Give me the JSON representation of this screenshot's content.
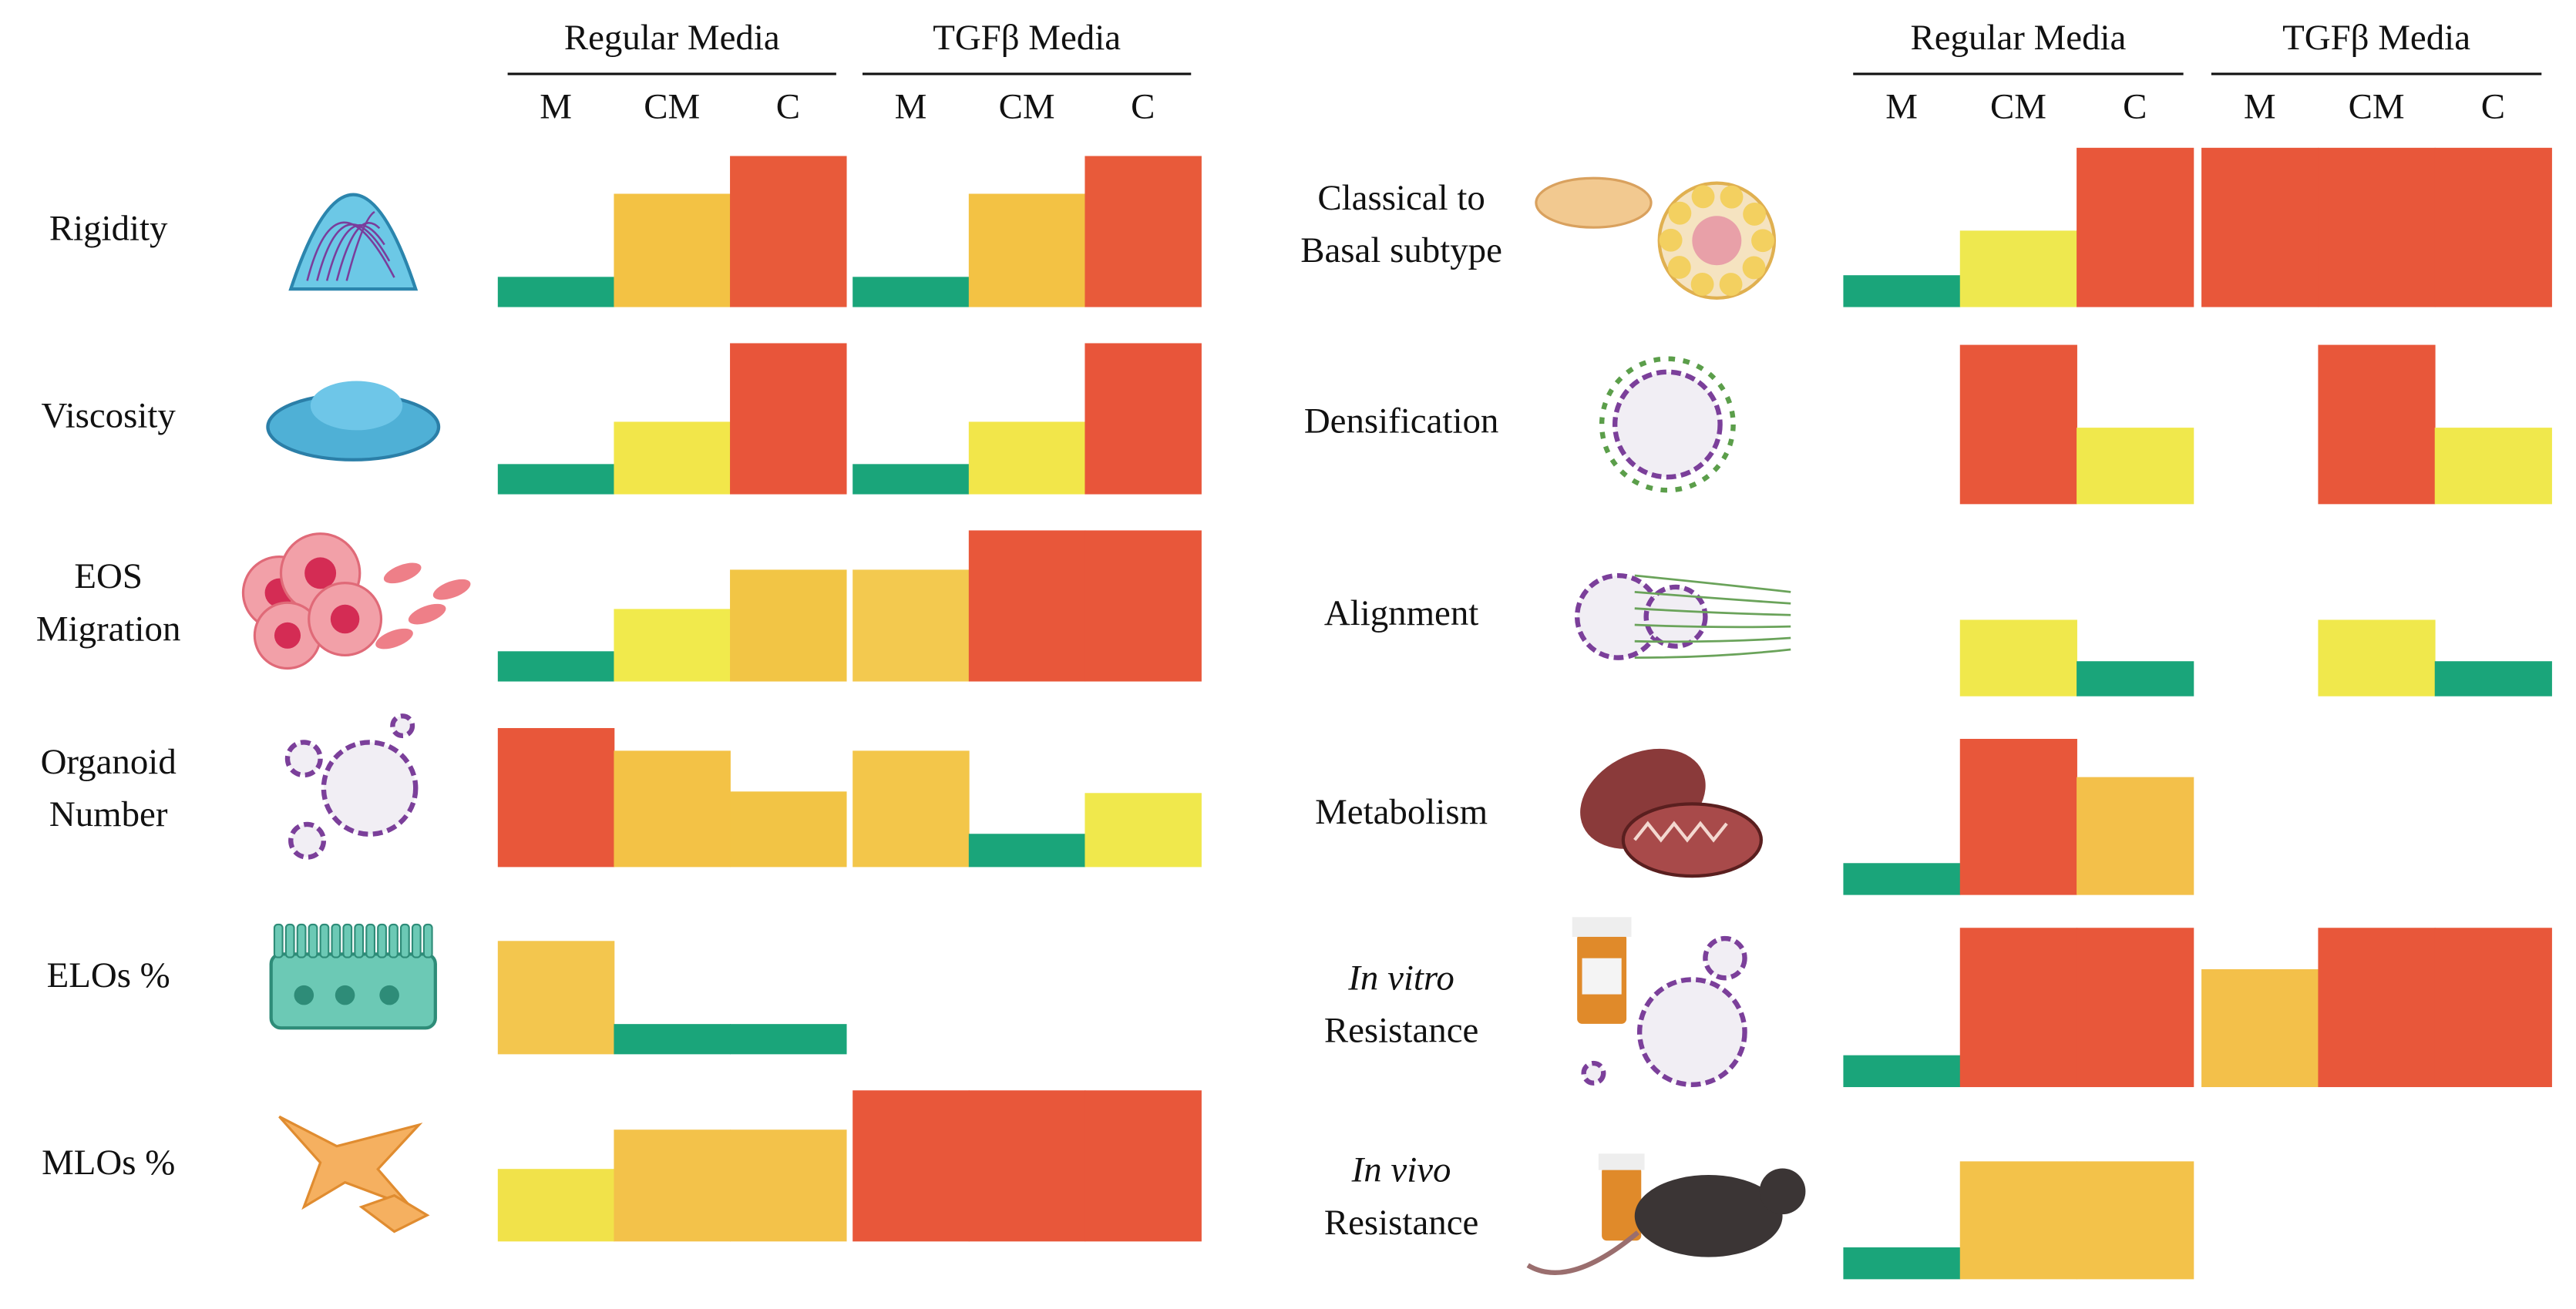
{
  "chart_data": [
    {
      "type": "step",
      "groups": [
        "Regular Media",
        "TGFβ Media"
      ],
      "categories": [
        "M",
        "CM",
        "C"
      ],
      "ylim": [
        0,
        1
      ],
      "rows": [
        {
          "label": [
            "Rigidity"
          ],
          "values": [
            [
              0.2,
              0.75,
              1.0
            ],
            [
              0.2,
              0.75,
              1.0
            ]
          ],
          "colors": [
            [
              "#1aa57a",
              "#f3c244",
              "#e85a3a"
            ],
            [
              "#1aa57a",
              "#f3c244",
              "#e85a3a"
            ]
          ]
        },
        {
          "label": [
            "Viscosity"
          ],
          "values": [
            [
              0.2,
              0.48,
              1.0
            ],
            [
              0.2,
              0.48,
              1.0
            ]
          ],
          "colors": [
            [
              "#1aa57a",
              "#f2e64a",
              "#e8553a"
            ],
            [
              "#1aa57a",
              "#f2e64a",
              "#e8553a"
            ]
          ]
        },
        {
          "label": [
            "EOS",
            "Migration"
          ],
          "values": [
            [
              0.2,
              0.48,
              0.74
            ],
            [
              0.74,
              1.0,
              1.0
            ]
          ],
          "colors": [
            [
              "#1aa57a",
              "#f1ea4c",
              "#f2c545"
            ],
            [
              "#f3c94f",
              "#e8573a",
              "#e8573a"
            ]
          ]
        },
        {
          "label": [
            "Organoid",
            "Number"
          ],
          "values": [
            [
              0.92,
              0.77,
              0.5
            ],
            [
              0.77,
              0.22,
              0.49
            ]
          ],
          "colors": [
            [
              "#e8573a",
              "#f3c246",
              "#f2c445"
            ],
            [
              "#f3c64a",
              "#1aa57a",
              "#f0e84c"
            ]
          ]
        },
        {
          "label": [
            "ELOs %"
          ],
          "values": [
            [
              0.75,
              0.2,
              0.2
            ],
            null
          ],
          "colors": [
            [
              "#f3c64e",
              "#1aa57a",
              "#1aa57a"
            ],
            null
          ]
        },
        {
          "label": [
            "MLOs %"
          ],
          "values": [
            [
              0.48,
              0.74,
              0.74
            ],
            [
              1.0,
              1.0,
              1.0
            ]
          ],
          "colors": [
            [
              "#f1e24a",
              "#f3c24a",
              "#f3c24a"
            ],
            [
              "#e8573a",
              "#e8573a",
              "#e8573a"
            ]
          ]
        }
      ]
    },
    {
      "type": "step",
      "groups": [
        "Regular Media",
        "TGFβ Media"
      ],
      "categories": [
        "M",
        "CM",
        "C"
      ],
      "ylim": [
        0,
        1
      ],
      "rows": [
        {
          "label": [
            "Classical to",
            "Basal subtype"
          ],
          "values": [
            [
              0.2,
              0.48,
              1.0
            ],
            [
              1.0,
              1.0,
              1.0
            ]
          ],
          "colors": [
            [
              "#1aa57a",
              "#eee84f",
              "#e8573a"
            ],
            [
              "#e8573a",
              "#e8573a",
              "#e8573a"
            ]
          ]
        },
        {
          "label": [
            "Densification"
          ],
          "values": [
            [
              null,
              1.0,
              0.48
            ],
            [
              null,
              1.0,
              0.48
            ]
          ],
          "colors": [
            [
              null,
              "#e8573a",
              "#f0e84c"
            ],
            [
              null,
              "#e8573a",
              "#f0e84c"
            ]
          ]
        },
        {
          "label": [
            "Alignment"
          ],
          "values": [
            [
              null,
              0.48,
              0.22
            ],
            [
              null,
              0.48,
              0.22
            ]
          ],
          "colors": [
            [
              null,
              "#f0e84c",
              "#1aa57a"
            ],
            [
              null,
              "#f0e84c",
              "#1aa57a"
            ]
          ]
        },
        {
          "label": [
            "Metabolism"
          ],
          "values": [
            [
              0.2,
              0.98,
              0.74
            ],
            null
          ],
          "colors": [
            [
              "#1aa57a",
              "#e8573a",
              "#f3c04a"
            ],
            null
          ]
        },
        {
          "label": [
            "In vitro",
            "Resistance"
          ],
          "italic_lines": [
            0
          ],
          "values": [
            [
              0.2,
              1.0,
              1.0
            ],
            [
              0.74,
              1.0,
              1.0
            ]
          ],
          "colors": [
            [
              "#1aa57a",
              "#e8573a",
              "#e8573a"
            ],
            [
              "#f3c04a",
              "#e8573a",
              "#e8573a"
            ]
          ]
        },
        {
          "label": [
            "In vivo",
            "Resistance"
          ],
          "italic_lines": [
            0
          ],
          "values": [
            [
              0.2,
              0.74,
              0.74
            ],
            null
          ],
          "colors": [
            [
              "#1aa57a",
              "#f3c24a",
              "#f3c24a"
            ],
            null
          ]
        }
      ]
    }
  ]
}
